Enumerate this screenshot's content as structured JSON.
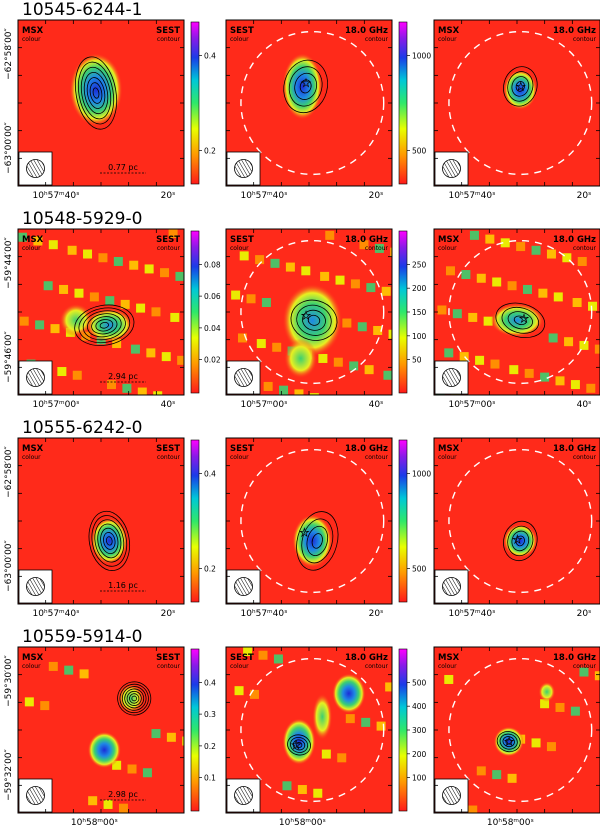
{
  "chart_data": {
    "type": "heatmap",
    "rows": [
      {
        "source": "10545-6244-1",
        "y_ticks": [
          "−62°58′00″",
          "−63°00′00″"
        ],
        "x_ticks": [
          "10ʰ57ᵐ40ˢ",
          "20ˢ"
        ],
        "scale_bar": "0.77 pc",
        "panels": [
          {
            "color_label": "MSX",
            "contour_label": "SEST",
            "colorbar_ticks": [
              "0.4",
              "0.2"
            ],
            "colorbar_values": [
              0.4,
              0.2
            ]
          },
          {
            "color_label": "SEST",
            "contour_label": "18.0 GHz",
            "colorbar_ticks": [
              "1000",
              "500"
            ],
            "colorbar_values": [
              1000,
              500
            ]
          },
          {
            "color_label": "MSX",
            "contour_label": "18.0 GHz"
          }
        ]
      },
      {
        "source": "10548-5929-0",
        "y_ticks": [
          "−59°44′00″",
          "−59°46′00″"
        ],
        "x_ticks": [
          "10ʰ57ᵐ00ˢ",
          "40ˢ"
        ],
        "scale_bar": "2.94 pc",
        "panels": [
          {
            "color_label": "MSX",
            "contour_label": "SEST",
            "colorbar_ticks": [
              "0.08",
              "0.06",
              "0.04",
              "0.02"
            ],
            "colorbar_values": [
              0.08,
              0.06,
              0.04,
              0.02
            ]
          },
          {
            "color_label": "SEST",
            "contour_label": "18.0 GHz",
            "colorbar_ticks": [
              "250",
              "200",
              "150",
              "100",
              "50"
            ],
            "colorbar_values": [
              250,
              200,
              150,
              100,
              50
            ]
          },
          {
            "color_label": "MSX",
            "contour_label": "18.0 GHz"
          }
        ]
      },
      {
        "source": "10555-6242-0",
        "y_ticks": [
          "−62°58′00″",
          "−63°00′00″"
        ],
        "x_ticks": [
          "10ʰ57ᵐ40ˢ",
          "20ˢ"
        ],
        "scale_bar": "1.16 pc",
        "panels": [
          {
            "color_label": "MSX",
            "contour_label": "SEST",
            "colorbar_ticks": [
              "0.4",
              "0.2"
            ],
            "colorbar_values": [
              0.4,
              0.2
            ]
          },
          {
            "color_label": "SEST",
            "contour_label": "18.0 GHz",
            "colorbar_ticks": [
              "1000",
              "500"
            ],
            "colorbar_values": [
              1000,
              500
            ]
          },
          {
            "color_label": "MSX",
            "contour_label": "18.0 GHz"
          }
        ]
      },
      {
        "source": "10559-5914-0",
        "y_ticks": [
          "−59°30′00″",
          "−59°32′00″"
        ],
        "x_ticks": [
          "10ʰ58ᵐ00ˢ"
        ],
        "scale_bar": "2.98 pc",
        "panels": [
          {
            "color_label": "MSX",
            "contour_label": "SEST",
            "colorbar_ticks": [
              "0.4",
              "0.3",
              "0.2",
              "0.1"
            ],
            "colorbar_values": [
              0.4,
              0.3,
              0.2,
              0.1
            ]
          },
          {
            "color_label": "SEST",
            "contour_label": "18.0 GHz",
            "colorbar_ticks": [
              "500",
              "400",
              "300",
              "200",
              "100"
            ],
            "colorbar_values": [
              500,
              400,
              300,
              200,
              100
            ]
          },
          {
            "color_label": "MSX",
            "contour_label": "18.0 GHz"
          }
        ]
      }
    ],
    "sub_labels": {
      "color": "colour",
      "contour": "contour"
    },
    "colors": {
      "background": "#ff2a1a",
      "peak_low": "#3cd070",
      "peak_mid": "#1e88e5",
      "peak_high": "#1c2cd8",
      "ring": "#ffffff"
    }
  }
}
